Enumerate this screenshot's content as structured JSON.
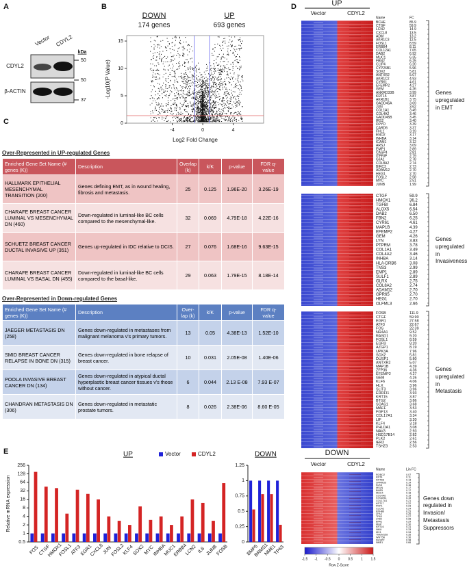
{
  "panels": {
    "a": "A",
    "b": "B",
    "c": "C",
    "d": "D",
    "e": "E"
  },
  "blot": {
    "lanes": [
      "Vector",
      "CDYL2"
    ],
    "rows": [
      "CDYL2",
      "β-ACTIN"
    ],
    "unit": "kDa",
    "markers": [
      50,
      50,
      37
    ]
  },
  "volcano": {
    "left_title": "DOWN",
    "left_count": "174 genes",
    "right_title": "UP",
    "right_count": "693 genes",
    "xlabel": "Log2 Fold Change",
    "ylabel": "-Log10(P Value)",
    "xlim": [
      -10,
      8
    ],
    "ylim": [
      0,
      16
    ],
    "xticks": [
      -4,
      0,
      4
    ],
    "yticks": [
      0,
      5,
      10,
      15
    ]
  },
  "tables": [
    {
      "title": "Over-Represented in UP-regulated Genes",
      "headers": [
        "Enriched Gene Set Name (# genes (K))",
        "Description",
        "Overlap (k)",
        "k/K",
        "p-value",
        "FDR q-value"
      ],
      "rows": [
        [
          "HALLMARK EPITHELIAL MESENCHYMAL TRANSITION (200)",
          "Genes defining EMT, as in wound healing, fibrosis and metastasis.",
          "25",
          "0.125",
          "1.96E-20",
          "3.26E-19"
        ],
        [
          "CHARAFE BREAST CANCER LUMINAL VS MESENCHYMAL DN (460)",
          "Down-regulated in luminal-like BC cells compared to the mesenchymal-like.",
          "32",
          "0.069",
          "4.79E-18",
          "4.22E-16"
        ],
        [
          "SCHUETZ BREAST CANCER DUCTAL INVASIVE UP (351)",
          "Genes up-regulated in IDC relative to DCIS.",
          "27",
          "0.076",
          "1.68E-16",
          "9.63E-15"
        ],
        [
          "CHARAFE BREAST CANCER LUMINAL VS BASAL DN (455)",
          "Down-regulated in luminal-like BC cells compared to the basal-like.",
          "29",
          "0.063",
          "1.79E-15",
          "8.18E-14"
        ]
      ]
    },
    {
      "title": "Over-Represented in Down-regulated Genes",
      "headers": [
        "Enriched Gene Set Name (# genes (K))",
        "Description",
        "Over-lap (k)",
        "k/K",
        "p-value",
        "FDR q-value"
      ],
      "rows": [
        [
          "JAEGER METASTASIS DN (258)",
          "Genes down-regulated in metastases from malignant melanoma v's primary tumors.",
          "13",
          "0.05",
          "4.38E-13",
          "1.52E-10"
        ],
        [
          "SMID BREAST CANCER RELAPSE IN BONE DN (315)",
          "Genes down-regulated in bone relapse of breast cancer.",
          "10",
          "0.031",
          "2.05E-08",
          "1.40E-06"
        ],
        [
          "POOLA INVASIVE BREAST CANCER DN (134)",
          "Genes down-regulated in atypical ductal hyperplastic breast cancer tissues v's those without cancer.",
          "6",
          "0.044",
          "2.13 E-08",
          "7.93 E-07"
        ],
        [
          "CHANDRAN METASTASIS DN (306)",
          "Genes down-regulated in metastatic prostate tumors.",
          "8",
          "0.026",
          "2.38E-06",
          "8.60 E-05"
        ]
      ]
    }
  ],
  "heatmap": {
    "up_title": "UP",
    "down_title": "DOWN",
    "groups": [
      "Vector",
      "CDYL2"
    ],
    "name_header": "Name",
    "fc_header": "FC",
    "down_fc_header": "Lin FC",
    "blocks": [
      {
        "label": "Genes upregulated in EMT",
        "genes": [
          "BCHE",
          "CTGF",
          "LCN2",
          "CXCL8",
          "ADM",
          "AKR1C3",
          "FOSL1",
          "ERBB4",
          "COL12A1",
          "DAB2",
          "MUC1",
          "FBN2",
          "CLIP4",
          "CYP26B1",
          "SOX2",
          "ANTXR2",
          "AKR1C2",
          "CYR61",
          "EFEMP2",
          "GEM",
          "ANKRD33B",
          "KRT15",
          "AKR1B1",
          "GADD45A",
          "JUN",
          "COL1A1",
          "COL4A2",
          "GADD45B",
          "IRS2",
          "DPYD",
          "CARD6",
          "FHL1",
          "ENO2",
          "INHBA",
          "ICAM1",
          "ARSJ",
          "EMP1",
          "CASP4",
          "ITPRIP",
          "GJA1",
          "COL8A2",
          "BIRC3",
          "ADAM12",
          "HEG1",
          "FOSL2",
          "MYC",
          "JUNB"
        ],
        "fc": [
          "85.9",
          "59.9",
          "14.9",
          "13.5",
          "13.2",
          "12.5",
          "8.59",
          "8.11",
          "7.65",
          "6.92",
          "6.35",
          "6.25",
          "6.20",
          "5.96",
          "5.81",
          "5.07",
          "4.93",
          "4.61",
          "4.27",
          "4.26",
          "3.99",
          "3.87",
          "3.75",
          "3.69",
          "3.62",
          "3.49",
          "3.46",
          "3.45",
          "3.40",
          "3.39",
          "3.37",
          "3.19",
          "3.17",
          "3.14",
          "3.12",
          "3.09",
          "2.89",
          "2.81",
          "2.79",
          "2.78",
          "2.74",
          "2.73",
          "2.70",
          "2.70",
          "2.58",
          "2.51",
          "1.99"
        ]
      },
      {
        "label": "Genes upregulated in Invasiveness",
        "genes": [
          "CTGF",
          "HMOX1",
          "TGFBI",
          "ALOX5",
          "DAB2",
          "FBN2",
          "CYR61",
          "MAP1B",
          "EFEMP2",
          "GEM",
          "LYN",
          "PTPRM",
          "COL1A1",
          "COL4A2",
          "INHBA",
          "HLA-DRB6",
          "TNS3",
          "EMP1",
          "SULF1",
          "GLRX",
          "COL8A2",
          "ADAM12",
          "GPR65",
          "HEG1",
          "OLFML3"
        ],
        "fc": [
          "59.9",
          "36.2",
          "6.84",
          "6.54",
          "6.50",
          "6.25",
          "4.61",
          "4.39",
          "4.27",
          "4.26",
          "3.83",
          "3.78",
          "3.49",
          "3.46",
          "3.14",
          "3.08",
          "2.99",
          "2.89",
          "2.89",
          "2.75",
          "2.74",
          "2.70",
          "2.70",
          "2.70",
          "2.66"
        ]
      },
      {
        "label": "Genes upregulated in Metastasis",
        "genes": [
          "FOSB",
          "CTGF",
          "EGR1",
          "ATF3",
          "FOS",
          "NR4A1",
          "RASD1",
          "FOSL1",
          "EGR3",
          "AZGP1",
          "UPK3A",
          "SOX2",
          "DUSP1",
          "ANTXR2",
          "MAP1B",
          "ZFP36",
          "EFEMP2",
          "GEM",
          "KLF6",
          "HLX",
          "SLIT3",
          "ERRFI1",
          "KRT15",
          "BTG2",
          "SCAS1",
          "MAFF",
          "FGF13",
          "COL17A1",
          "LIF",
          "KLF4",
          "PHLDA1",
          "NAV3",
          "HSD17B14",
          "PLK2",
          "IER2",
          "TSHZ3"
        ],
        "fc": [
          "111.9",
          "59.90",
          "27.58",
          "22.67",
          "22.39",
          "9.52",
          "9.20",
          "8.59",
          "8.20",
          "8.19",
          "7.96",
          "5.81",
          "5.80",
          "5.07",
          "4.39",
          "4.36",
          "4.27",
          "4.26",
          "4.06",
          "3.96",
          "3.96",
          "3.93",
          "3.87",
          "3.86",
          "3.68",
          "3.53",
          "3.40",
          "3.34",
          "3.20",
          "3.18",
          "3.08",
          "2.93",
          "2.82",
          "2.61",
          "2.56",
          "2.53"
        ]
      }
    ],
    "down_block": {
      "label": "Genes down regulated in Invasion/ Metastasis Suppressors",
      "genes": [
        "ROBO2",
        "KRT4",
        "KRT6B",
        "SPRR1B",
        "KLK5",
        "MSLN",
        "BMP5",
        "MUC4",
        "COL4A6",
        "SYNGR4",
        "COL17A1",
        "KRT17",
        "PKP1",
        "CLCA2",
        "EPHB6",
        "LFA4",
        "TP63",
        "LY6D",
        "BPA1",
        "MGP",
        "KRT16",
        "NMU",
        "MX1",
        "TMEM158",
        "WNT5B",
        "DUSP2",
        "NME1"
      ],
      "fc": [
        "0.07",
        "0.11",
        "0.13",
        "0.14",
        "0.16",
        "0.17",
        "0.17",
        "0.18",
        "0.19",
        "0.19",
        "0.21",
        "0.22",
        "0.23",
        "0.24",
        "0.25",
        "0.26",
        "0.27",
        "0.28",
        "0.29",
        "0.30",
        "0.31",
        "0.33",
        "0.34",
        "0.35",
        "0.36",
        "0.38",
        "0.66"
      ]
    },
    "colorbar_ticks": [
      -1.5,
      -1,
      -0.5,
      0,
      0.5,
      1,
      1.5
    ],
    "colorbar_label": "Row Z-Score"
  },
  "chart_data": [
    {
      "type": "bar",
      "title": "UP",
      "ylabel": "Relative mRNA expression",
      "log": true,
      "legend": "top-right",
      "categories": [
        "FOS",
        "CTGF",
        "HMOX1",
        "FOSL1",
        "ATF3",
        "EGR1",
        "CXCL8",
        "JUN",
        "FOSL2",
        "KLF4",
        "SOX2",
        "MYC",
        "INHBA",
        "MUC1",
        "ERBB4",
        "LCN2",
        "IL6",
        "JUNB",
        "FOSB"
      ],
      "series": [
        {
          "name": "Vector",
          "color": "#1f22d8",
          "values": [
            1,
            1,
            1,
            1,
            1,
            1,
            1,
            1,
            1,
            1,
            1,
            1,
            1,
            1,
            1,
            1,
            1,
            1,
            1
          ]
        },
        {
          "name": "CDYL2",
          "color": "#d42424",
          "values": [
            150,
            45,
            40,
            5,
            35,
            25,
            16,
            4,
            2.8,
            2,
            9,
            3,
            4,
            2,
            4,
            16,
            12,
            2.8,
            60
          ]
        }
      ],
      "ylim": [
        0.5,
        256
      ],
      "yticks": [
        0.5,
        1,
        2,
        4,
        8,
        16,
        32,
        64,
        128,
        256
      ]
    },
    {
      "type": "bar",
      "title": "DOWN",
      "log": false,
      "categories": [
        "BMP5",
        "BRMS1",
        "NME1",
        "TP63"
      ],
      "series": [
        {
          "name": "Vector",
          "color": "#1f22d8",
          "values": [
            1,
            1,
            1,
            1
          ]
        },
        {
          "name": "CDYL2",
          "color": "#d42424",
          "values": [
            0.53,
            0.78,
            0.78,
            0.28
          ]
        }
      ],
      "ylim": [
        0,
        1.25
      ],
      "yticks": [
        0,
        0.25,
        0.5,
        0.75,
        1,
        1.25
      ]
    }
  ]
}
